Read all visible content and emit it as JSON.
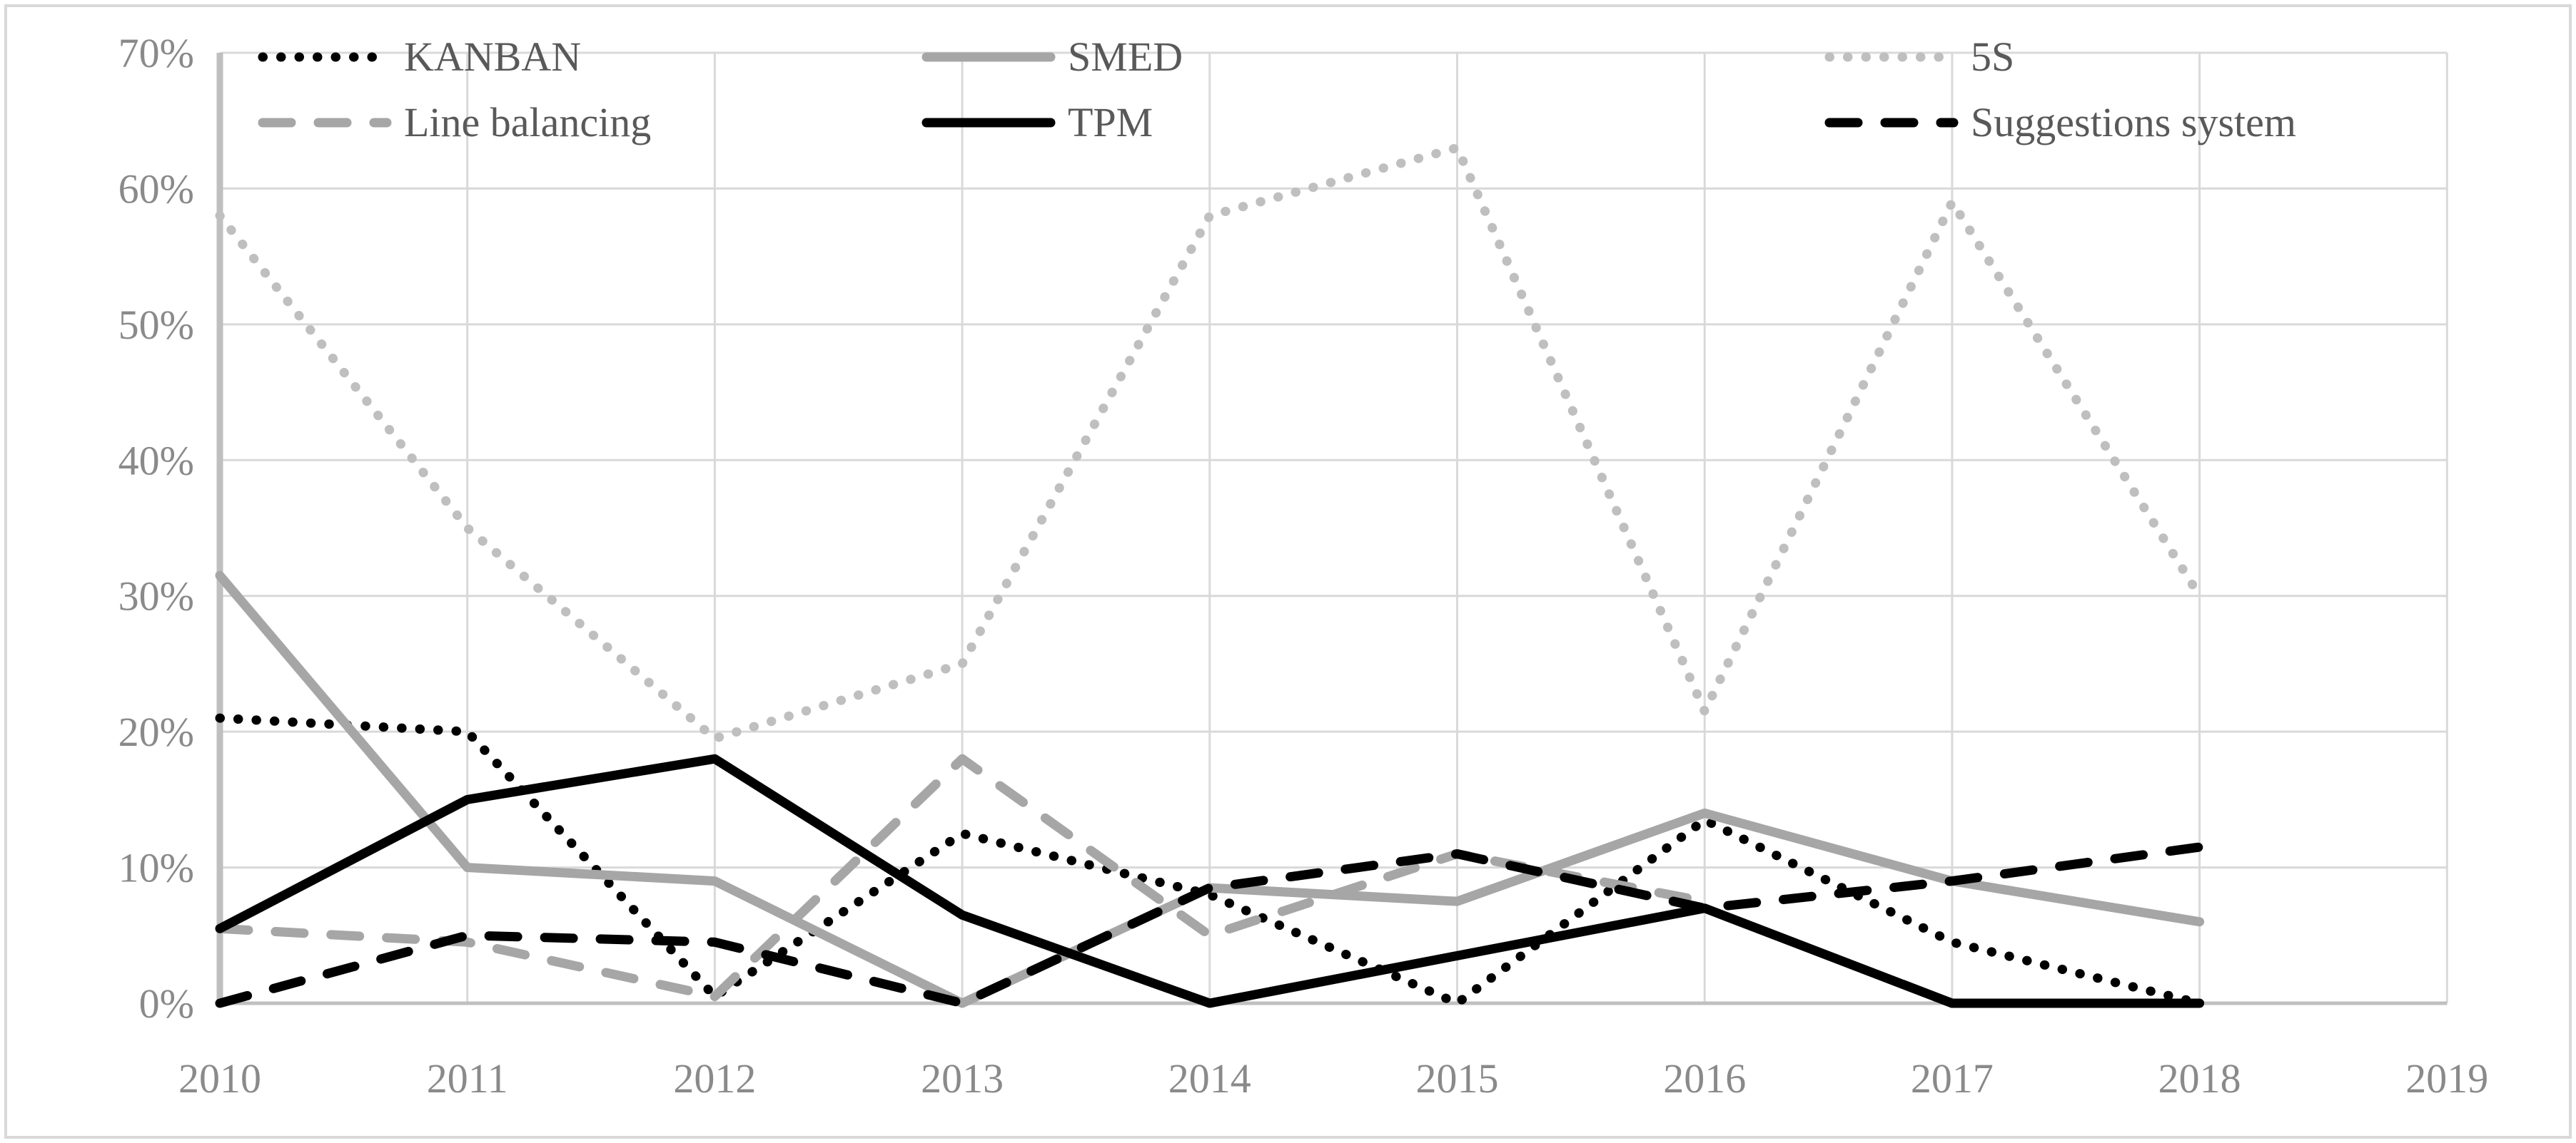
{
  "chart_data": {
    "type": "line",
    "title": "",
    "x_start": 2010,
    "x_axis": {
      "ticks": [
        "2010",
        "2011",
        "2012",
        "2013",
        "2014",
        "2015",
        "2016",
        "2017",
        "2018",
        "2019"
      ],
      "range": [
        2010,
        2019
      ]
    },
    "y_axis": {
      "ticks": [
        "0%",
        "10%",
        "20%",
        "30%",
        "40%",
        "50%",
        "60%",
        "70%"
      ],
      "tick_values": [
        0,
        10,
        20,
        30,
        40,
        50,
        60,
        70
      ],
      "min": 0,
      "max": 70,
      "grid": true,
      "unit": "%"
    },
    "legend_position": "top",
    "grid_color": "#d9d9d9",
    "axis_color": "#bfbfbf",
    "tick_label_color": "#8a8a8a",
    "legend_text_color": "#595959",
    "series": [
      {
        "name": "KANBAN",
        "color": "#000000",
        "style": "dotted",
        "values": [
          21,
          20,
          0.5,
          12.5,
          8,
          0,
          13.5,
          4.5,
          0
        ]
      },
      {
        "name": "SMED",
        "color": "#a6a6a6",
        "style": "solid",
        "values": [
          31.5,
          10,
          9,
          0,
          8.5,
          7.5,
          14,
          9,
          6
        ]
      },
      {
        "name": "5S",
        "color": "#bfbfbf",
        "style": "dotted",
        "values": [
          58,
          35,
          19.5,
          25,
          58,
          63,
          21.5,
          59,
          30
        ]
      },
      {
        "name": "Line balancing",
        "color": "#a6a6a6",
        "style": "dashed",
        "values": [
          5.5,
          4.5,
          0.5,
          18,
          5,
          11,
          7.5,
          null,
          null
        ]
      },
      {
        "name": "TPM",
        "color": "#000000",
        "style": "solid",
        "values": [
          5.5,
          15,
          18,
          6.5,
          0,
          3.5,
          7,
          0,
          0
        ]
      },
      {
        "name": "Suggestions system",
        "color": "#000000",
        "style": "dashed",
        "values": [
          0,
          5,
          4.5,
          0,
          8.5,
          11,
          7,
          9,
          11.5
        ]
      }
    ]
  }
}
